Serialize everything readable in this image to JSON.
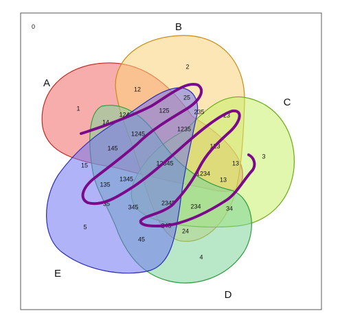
{
  "diagram": {
    "outside_count": "0",
    "sets": [
      {
        "key": "A",
        "label": "A",
        "color": "#e8312f"
      },
      {
        "key": "B",
        "label": "B",
        "color": "#f5a623"
      },
      {
        "key": "C",
        "label": "C",
        "color": "#9adf1a"
      },
      {
        "key": "D",
        "label": "D",
        "color": "#2fbf4a"
      },
      {
        "key": "E",
        "label": "E",
        "color": "#3a3cf2"
      }
    ],
    "regions": [
      {
        "id": "r-1",
        "label": "1"
      },
      {
        "id": "r-2",
        "label": "2"
      },
      {
        "id": "r-3",
        "label": "3"
      },
      {
        "id": "r-4",
        "label": "4"
      },
      {
        "id": "r-5",
        "label": "5"
      },
      {
        "id": "r-12",
        "label": "12"
      },
      {
        "id": "r-14",
        "label": "14"
      },
      {
        "id": "r-124",
        "label": "124"
      },
      {
        "id": "r-125",
        "label": "125"
      },
      {
        "id": "r-25",
        "label": "25"
      },
      {
        "id": "r-235",
        "label": "235"
      },
      {
        "id": "r-23",
        "label": "23"
      },
      {
        "id": "r-1245",
        "label": "1245"
      },
      {
        "id": "r-1235",
        "label": "1235"
      },
      {
        "id": "r-145",
        "label": "145"
      },
      {
        "id": "r-123",
        "label": "123"
      },
      {
        "id": "r-15",
        "label": "15"
      },
      {
        "id": "r-12345",
        "label": "12345"
      },
      {
        "id": "r-13a",
        "label": "13"
      },
      {
        "id": "r-1234",
        "label": "1234"
      },
      {
        "id": "r-13b",
        "label": "13"
      },
      {
        "id": "r-135",
        "label": "135"
      },
      {
        "id": "r-1345",
        "label": "1345"
      },
      {
        "id": "r-35",
        "label": "35"
      },
      {
        "id": "r-345",
        "label": "345"
      },
      {
        "id": "r-2345",
        "label": "2345"
      },
      {
        "id": "r-234",
        "label": "234"
      },
      {
        "id": "r-34",
        "label": "34"
      },
      {
        "id": "r-245",
        "label": "245"
      },
      {
        "id": "r-24",
        "label": "24"
      },
      {
        "id": "r-45",
        "label": "45"
      }
    ],
    "annotation_color": "#7a0a8a"
  }
}
